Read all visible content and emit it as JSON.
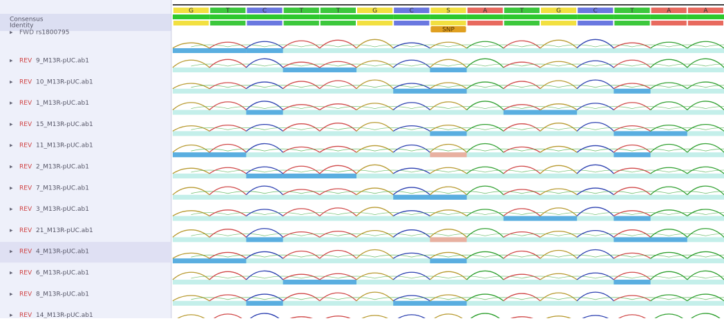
{
  "consensus": {
    "label": "Consensus",
    "bases": [
      "G",
      "T",
      "C",
      "T",
      "T",
      "G",
      "C",
      "S",
      "A",
      "T",
      "G",
      "C",
      "T",
      "A",
      "A"
    ]
  },
  "identity": {
    "label": "Identity"
  },
  "annotation": {
    "label": "SNP",
    "column": 7
  },
  "rows": [
    {
      "direction": "FWD",
      "name": "rs1800795"
    },
    {
      "direction": "REV",
      "name": "9_M13R-pUC.ab1"
    },
    {
      "direction": "REV",
      "name": "10_M13R-pUC.ab1"
    },
    {
      "direction": "REV",
      "name": "1_M13R-pUC.ab1"
    },
    {
      "direction": "REV",
      "name": "15_M13R-pUC.ab1"
    },
    {
      "direction": "REV",
      "name": "11_M13R-pUC.ab1"
    },
    {
      "direction": "REV",
      "name": "2_M13R-pUC.ab1"
    },
    {
      "direction": "REV",
      "name": "7_M13R-pUC.ab1"
    },
    {
      "direction": "REV",
      "name": "3_M13R-pUC.ab1"
    },
    {
      "direction": "REV",
      "name": "21_M13R-pUC.ab1"
    },
    {
      "direction": "REV",
      "name": "4_M13R-pUC.ab1"
    },
    {
      "direction": "REV",
      "name": "6_M13R-pUC.ab1"
    },
    {
      "direction": "REV",
      "name": "8_M13R-pUC.ab1"
    },
    {
      "direction": "REV",
      "name": "14_M13R-pUC.ab1"
    }
  ]
}
